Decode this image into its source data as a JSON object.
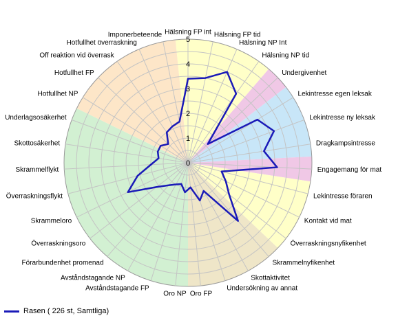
{
  "chart_data": {
    "type": "radar",
    "title": "",
    "r_ticks": [
      "0",
      "1",
      "2",
      "3",
      "4",
      "5"
    ],
    "r_range": [
      0,
      5
    ],
    "grid": true,
    "legend_position": "bottom-left",
    "axes": [
      "Hälsning FP int",
      "Hälsning FP tid",
      "Hälsning NP Int",
      "Hälsning NP tid",
      "Undergivenhet",
      "Lekintresse egen leksak",
      "Lekintresse ny leksak",
      "Dragkampsintresse",
      "Engagemang för mat",
      "Lekintresse föraren",
      "Kontakt vid mat",
      "Överraskningsnyfikenhet",
      "Skrammelnyfikenhet",
      "Skottaktivitet",
      "Undersökning av annat",
      "Oro FP",
      "Oro NP",
      "Avståndstagande FP",
      "Avståndstagande NP",
      "Förarbundenhet promenad",
      "Överraskningsoro",
      "Skrammeloro",
      "Överraskningsflykt",
      "Skrammelflykt",
      "Skottosäkerhet",
      "Underlagsosäkerhet",
      "Hotfullhet NP",
      "Hotfullhet FP",
      "Off reaktion vid överrask",
      "Hotfullhet överraskning",
      "Imponerbeteende"
    ],
    "sectors": [
      {
        "from": 0,
        "to": 3,
        "color": "#ffffc8"
      },
      {
        "from": 4,
        "to": 4,
        "color": "#f0c8e6"
      },
      {
        "from": 5,
        "to": 7,
        "color": "#c8e6f8"
      },
      {
        "from": 8,
        "to": 8,
        "color": "#f0c8e6"
      },
      {
        "from": 9,
        "to": 11,
        "color": "#ffffc8"
      },
      {
        "from": 12,
        "to": 15,
        "color": "#efe6c8"
      },
      {
        "from": 16,
        "to": 25,
        "color": "#d2f0d2"
      },
      {
        "from": 26,
        "to": 30,
        "color": "#fde6c8"
      }
    ],
    "series": [
      {
        "name": "Rasen ( 226 st, Samtliga)",
        "color": "#1a1ab8",
        "values": [
          3.4,
          3.5,
          4.0,
          3.4,
          1.1,
          3.3,
          3.7,
          3.1,
          3.6,
          1.4,
          1.7,
          2.1,
          3.1,
          1.3,
          1.6,
          1.0,
          1.2,
          0.9,
          1.0,
          1.2,
          1.6,
          2.7,
          2.1,
          1.5,
          1.2,
          1.3,
          1.3,
          1.1,
          1.5,
          1.6,
          1.7
        ]
      }
    ]
  }
}
